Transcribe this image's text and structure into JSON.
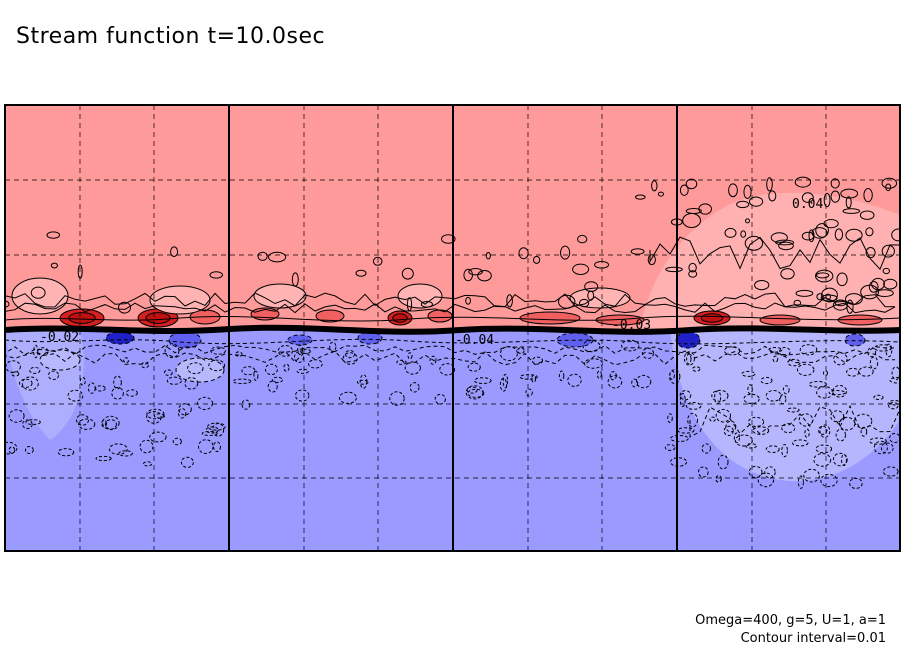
{
  "title": "Stream function t=10.0sec",
  "footer": {
    "params": "Omega=400, g=5, U=1, a=1",
    "contour_interval": "Contour interval=0.01"
  },
  "colors": {
    "positive": "#ff9a9a",
    "positive_light": "#ffb3b3",
    "positive_strong": "#f06060",
    "positive_peak": "#d42020",
    "negative": "#9a9aff",
    "negative_light": "#b8b8ff",
    "negative_strong": "#6060f0",
    "negative_peak": "#2020c8"
  },
  "chart_data": {
    "type": "heatmap",
    "title": "Stream function t=10.0sec",
    "field": "stream function",
    "contour_interval": 0.01,
    "xlabel": "",
    "ylabel": "",
    "grid": true,
    "panels": 4,
    "positive_region": "upper half (red)",
    "negative_region": "lower half (blue)",
    "contour_labels": [
      {
        "text": "0.04"
      },
      {
        "text": "-0.04"
      },
      {
        "text": "-0.03"
      },
      {
        "text": "-0.02"
      }
    ]
  }
}
